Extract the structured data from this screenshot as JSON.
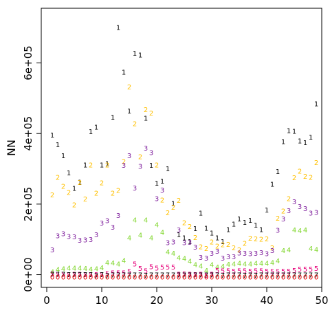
{
  "chart_data": {
    "type": "scatter",
    "title": "",
    "xlabel": "",
    "ylabel": "NN",
    "xlim": [
      -1,
      50
    ],
    "ylim": [
      -36000,
      755000
    ],
    "x_ticks": [
      0,
      10,
      20,
      30,
      40,
      50
    ],
    "x_tick_labels": [
      "0",
      "10",
      "20",
      "30",
      "40",
      "50"
    ],
    "y_ticks": [
      0,
      200000,
      400000,
      600000
    ],
    "y_tick_labels": [
      "0e+00",
      "2e+05",
      "4e+05",
      "6e+05"
    ],
    "grid": false,
    "legend": "none",
    "marker": "series digit",
    "x": [
      1,
      2,
      3,
      4,
      5,
      6,
      7,
      8,
      9,
      10,
      11,
      12,
      13,
      14,
      15,
      16,
      17,
      18,
      19,
      20,
      21,
      22,
      23,
      24,
      25,
      26,
      27,
      28,
      29,
      30,
      31,
      32,
      33,
      34,
      35,
      36,
      37,
      38,
      39,
      40,
      41,
      42,
      43,
      44,
      45,
      46,
      47,
      48,
      49
    ],
    "series": [
      {
        "name": "1",
        "color": "#000000",
        "values": [
          396000,
          368000,
          337000,
          288000,
          245000,
          262000,
          311000,
          405000,
          418000,
          311000,
          315000,
          446000,
          700000,
          574000,
          464000,
          627000,
          623000,
          443000,
          310000,
          259000,
          265000,
          300000,
          202000,
          113000,
          104000,
          94000,
          131000,
          174000,
          132000,
          118000,
          104000,
          94000,
          128000,
          143000,
          158000,
          148000,
          154000,
          140000,
          128000,
          183000,
          256000,
          292000,
          377000,
          408000,
          406000,
          379000,
          374000,
          390000,
          484000
        ]
      },
      {
        "name": "2",
        "color": "#FFC000",
        "values": [
          226000,
          276000,
          250000,
          233000,
          198000,
          261000,
          214000,
          311000,
          231000,
          260000,
          311000,
          231000,
          239000,
          321000,
          532000,
          428000,
          334000,
          468000,
          458000,
          311000,
          211000,
          175000,
          191000,
          210000,
          147000,
          136000,
          105000,
          79000,
          74000,
          93000,
          81000,
          85000,
          86000,
          76000,
          70000,
          89000,
          103000,
          101000,
          100000,
          101000,
          76000,
          160000,
          180000,
          215000,
          275000,
          293000,
          279000,
          276000,
          318000
        ]
      },
      {
        "name": "3",
        "color": "#7E1E9C",
        "values": [
          70000,
          110000,
          116000,
          108000,
          107000,
          97000,
          98000,
          99000,
          113000,
          146000,
          153000,
          134000,
          168000,
          310000,
          337000,
          246000,
          307000,
          359000,
          346000,
          215000,
          240000,
          91000,
          93000,
          127000,
          91000,
          92000,
          78000,
          49000,
          47000,
          60000,
          66000,
          47000,
          51000,
          51000,
          61000,
          60000,
          59000,
          60000,
          62000,
          59000,
          68000,
          126000,
          158000,
          181000,
          207000,
          193000,
          187000,
          174000,
          176000
        ]
      },
      {
        "name": "4",
        "color": "#7FD62A",
        "values": [
          8000,
          15000,
          17000,
          19000,
          19000,
          19000,
          18000,
          16000,
          17000,
          20000,
          34000,
          33000,
          30000,
          40000,
          104000,
          155000,
          112000,
          155000,
          104000,
          141000,
          120000,
          64000,
          60000,
          48000,
          46000,
          38000,
          28000,
          24000,
          12000,
          28000,
          21000,
          23000,
          29000,
          30000,
          32000,
          30000,
          30000,
          32000,
          32000,
          32000,
          34000,
          39000,
          68000,
          70000,
          127000,
          125000,
          127000,
          74000,
          71000
        ]
      },
      {
        "name": "5",
        "color": "#E6007A",
        "values": [
          2000,
          1000,
          1000,
          0,
          1000,
          1000,
          0,
          0,
          0,
          0,
          3000,
          5000,
          5000,
          5000,
          9000,
          30000,
          18000,
          11000,
          22000,
          19000,
          21000,
          21000,
          21000,
          1000,
          2000,
          1000,
          0,
          1000,
          -2000,
          1000,
          12000,
          11000,
          11000,
          10000,
          11000,
          11000,
          10000,
          11000,
          11000,
          10000,
          9000,
          9000,
          10000,
          10000,
          12000,
          16000,
          16000,
          16000,
          18000
        ]
      },
      {
        "name": "7",
        "color": "#000000",
        "values": [
          1000,
          1000,
          1000,
          0,
          0,
          0,
          0,
          0,
          -3000,
          0,
          -3000,
          -1000,
          -1000,
          -1000,
          -1000,
          -1000,
          -1000,
          -2000,
          -1000,
          -1000,
          -1000,
          -1000,
          -1000,
          -1000,
          -1000,
          -1000,
          -1000,
          -1000,
          -1000,
          -1000,
          -1000,
          -2000,
          -1000,
          -1000,
          -1000,
          -2000,
          -1000,
          -2000,
          -1000,
          -1000,
          -1000,
          -1000,
          -1000,
          -1000,
          -1000,
          -1000,
          -1000,
          -1000,
          -1000
        ]
      },
      {
        "name": "0",
        "color": "#E60000",
        "values": [
          -7000,
          -7000,
          -7000,
          -7000,
          -7000,
          -7000,
          -7000,
          -7000,
          -7000,
          -7000,
          -7000,
          -7000,
          -7000,
          -7000,
          -7000,
          -7000,
          -7000,
          -7000,
          -7000,
          -7000,
          -7000,
          -7000,
          -7000,
          -7000,
          -7000,
          -7000,
          -7000,
          -7000,
          -7000,
          -7000,
          -7000,
          -7000,
          -7000,
          -7000,
          -7000,
          -7000,
          -7000,
          -7000,
          -7000,
          -7000,
          -7000,
          -7000,
          -7000,
          -7000,
          -7000,
          -7000,
          -7000,
          -7000,
          -7000
        ]
      }
    ]
  }
}
